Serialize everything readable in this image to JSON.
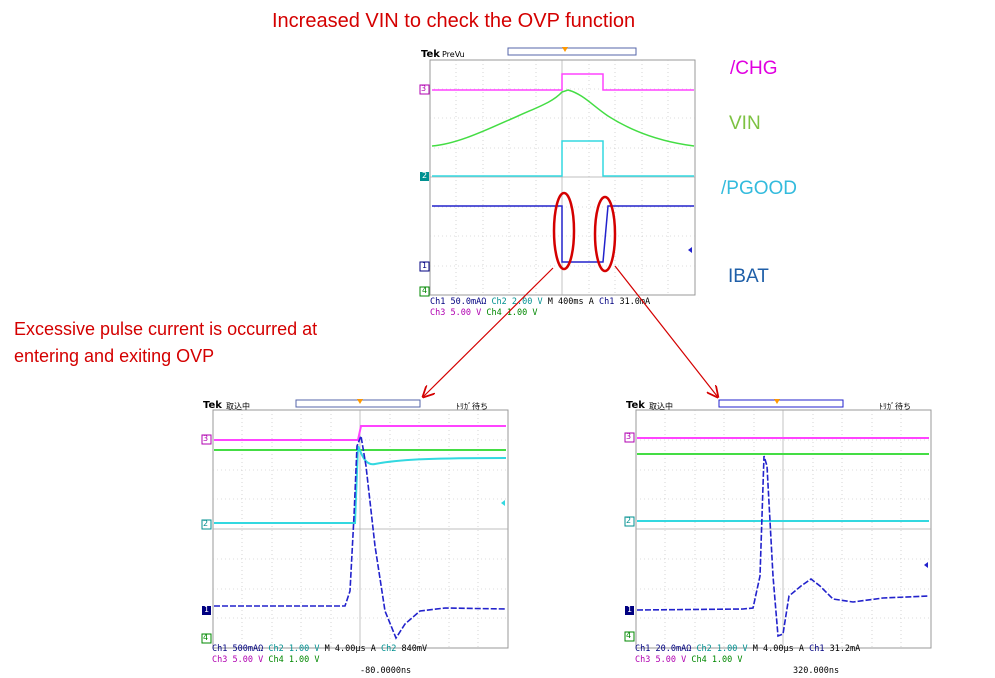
{
  "title": "Increased VIN to check the OVP function",
  "note_lines": [
    "Excessive pulse current is occurred at",
    "entering and exiting OVP"
  ],
  "signal_labels": {
    "chg": {
      "text": "/CHG",
      "color": "#e000e0"
    },
    "vin": {
      "text": "VIN",
      "color": "#7dc242"
    },
    "pgood": {
      "text": "/PGOOD",
      "color": "#33bbdd"
    },
    "ibat": {
      "text": "IBAT",
      "color": "#1f5fa8"
    }
  },
  "scopes": {
    "overview": {
      "brand": "Tek",
      "mode": "PreVu",
      "row1": [
        "Ch1",
        "50.0mAΩ",
        "Ch2",
        "2.00 V",
        "M 400ms",
        "A",
        "Ch1",
        "31.0mA"
      ],
      "row2": [
        "Ch3",
        "5.00 V",
        "Ch4",
        "1.00 V"
      ],
      "markers": [
        "3",
        "2",
        "1",
        "4"
      ]
    },
    "entering": {
      "brand": "Tek",
      "mode": "取込中",
      "right_status": "ﾄﾘｶﾞ待ち",
      "row1": [
        "Ch1",
        "500mAΩ",
        "Ch2",
        "1.00 V",
        "M 4.00μs",
        "A",
        "Ch2",
        "840mV"
      ],
      "row2": [
        "Ch3",
        "5.00 V",
        "Ch4",
        "1.00 V"
      ],
      "trigger_pos": "-80.0000ns",
      "markers": [
        "3",
        "2",
        "1",
        "4"
      ]
    },
    "exiting": {
      "brand": "Tek",
      "mode": "取込中",
      "right_status": "ﾄﾘｶﾞ待ち",
      "row1": [
        "Ch1",
        "20.0mAΩ",
        "Ch2",
        "1.00 V",
        "M 4.00μs",
        "A",
        "Ch1",
        "31.2mA"
      ],
      "row2": [
        "Ch3",
        "5.00 V",
        "Ch4",
        "1.00 V"
      ],
      "trigger_pos": "320.000ns",
      "markers": [
        "3",
        "2",
        "1",
        "4"
      ]
    }
  },
  "colors": {
    "annotation": "#d40000",
    "ch1": "#1f2fd0",
    "ch2": "#33d8e0",
    "ch3": "#ff44ff",
    "ch4": "#44dd44"
  }
}
